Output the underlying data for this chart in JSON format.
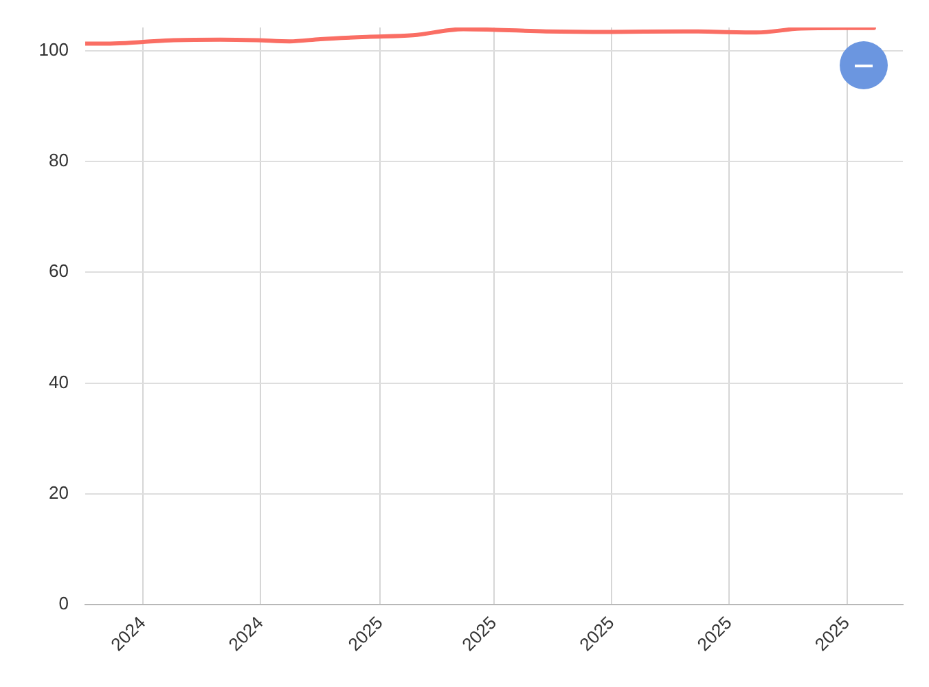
{
  "chart_data": {
    "type": "line",
    "x": [
      "2024-09-01",
      "2024-09-14",
      "2024-10-01",
      "2024-10-17",
      "2024-11-10",
      "2024-11-29",
      "2024-12-16",
      "2025-01-01",
      "2025-01-25",
      "2025-02-18",
      "2025-03-16",
      "2025-03-31",
      "2025-04-28",
      "2025-05-31",
      "2025-07-08",
      "2025-08-15",
      "2025-09-07",
      "2025-09-29",
      "2025-10-15"
    ],
    "series": [
      {
        "color": "#fa6e64",
        "values": [
          101.3,
          101.3,
          101.6,
          101.9,
          102.0,
          101.9,
          101.7,
          102.1,
          102.5,
          102.8,
          103.9,
          103.8,
          103.5,
          103.4,
          103.5,
          103.3,
          104.0,
          104.1,
          104.1
        ]
      }
    ],
    "xlim": [
      "2024-09-01",
      "2025-10-30"
    ],
    "xticks": [
      {
        "value": "2024-10-01",
        "label": "2024"
      },
      {
        "value": "2024-12-01",
        "label": "2024"
      },
      {
        "value": "2025-02-01",
        "label": "2025"
      },
      {
        "value": "2025-04-01",
        "label": "2025"
      },
      {
        "value": "2025-06-01",
        "label": "2025"
      },
      {
        "value": "2025-08-01",
        "label": "2025"
      },
      {
        "value": "2025-10-01",
        "label": "2025"
      }
    ],
    "ylim": [
      0,
      104.2
    ],
    "yticks": [
      0,
      20,
      40,
      60,
      80,
      100
    ],
    "grid": true,
    "marker": "none"
  }
}
